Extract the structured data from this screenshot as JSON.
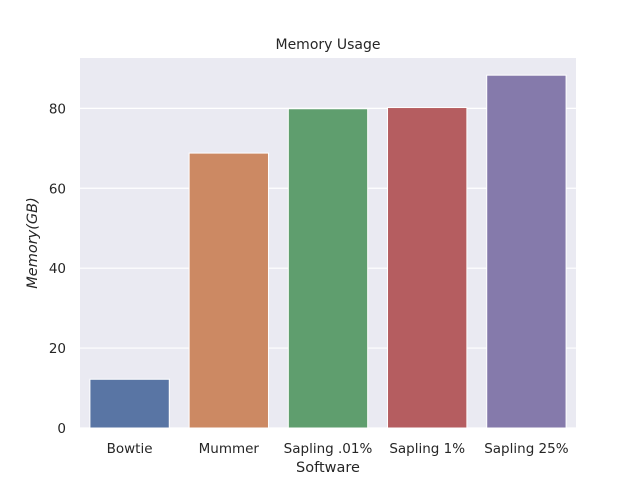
{
  "chart_data": {
    "type": "bar",
    "title": "Memory Usage",
    "xlabel": "Software",
    "ylabel": "Memory(GB)",
    "categories": [
      "Bowtie",
      "Mummer",
      "Sapling .01%",
      "Sapling 1%",
      "Sapling 25%"
    ],
    "values": [
      12.2,
      68.8,
      79.9,
      80.2,
      88.3
    ],
    "colors": [
      "#5975a4",
      "#cc8963",
      "#5f9e6e",
      "#b55d60",
      "#857aab"
    ],
    "ylim": [
      0,
      92.6
    ],
    "yticks": [
      0,
      20,
      40,
      60,
      80
    ],
    "grid": true,
    "background": "#eaeaf2"
  }
}
